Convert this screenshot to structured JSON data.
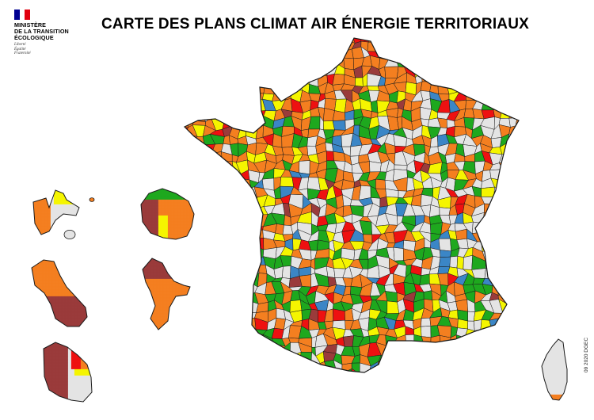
{
  "header": {
    "title": "CARTE DES PLANS CLIMAT AIR ÉNERGIE TERRITORIAUX",
    "credit": "09 2020 DGEC"
  },
  "logo": {
    "lines": [
      "MINISTÈRE",
      "DE LA TRANSITION",
      "ÉCOLOGIQUE"
    ],
    "motto": [
      "Liberté",
      "Égalité",
      "Fraternité"
    ],
    "flag_colors": [
      "#000091",
      "#ffffff",
      "#e1000f"
    ]
  },
  "legend_colors": {
    "orange": "#f47f20",
    "green": "#1ea81e",
    "yellow": "#f5f500",
    "red": "#ee1111",
    "blue": "#3b86c6",
    "brown": "#9a3b3b",
    "grey": "#e4e4e4",
    "border": "#1a1a1a"
  },
  "territories": [
    "metropole-france",
    "guadeloupe",
    "la-reunion",
    "martinique",
    "mayotte",
    "guyane",
    "corse"
  ]
}
